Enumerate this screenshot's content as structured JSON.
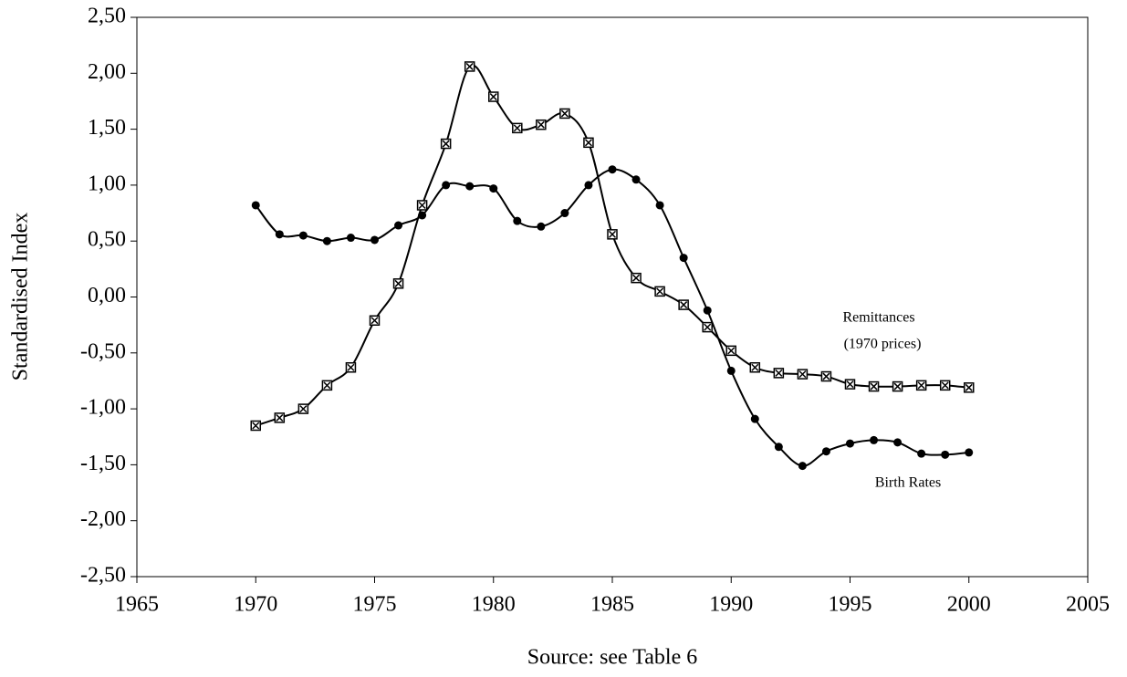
{
  "chart_data": {
    "type": "line",
    "y_label": "Standardised Index",
    "x_label": "Source: see Table 6",
    "x": [
      1970,
      1971,
      1972,
      1973,
      1974,
      1975,
      1976,
      1977,
      1978,
      1979,
      1980,
      1981,
      1982,
      1983,
      1984,
      1985,
      1986,
      1987,
      1988,
      1989,
      1990,
      1991,
      1992,
      1993,
      1994,
      1995,
      1996,
      1997,
      1998,
      1999,
      2000
    ],
    "series": [
      {
        "name": "Birth Rates",
        "color": "#000000",
        "marker": "circle",
        "values": [
          0.82,
          0.56,
          0.55,
          0.5,
          0.53,
          0.51,
          0.64,
          0.73,
          1.0,
          0.99,
          0.97,
          0.68,
          0.63,
          0.75,
          1.0,
          1.14,
          1.05,
          0.82,
          0.35,
          -0.12,
          -0.66,
          -1.09,
          -1.34,
          -1.51,
          -1.38,
          -1.31,
          -1.28,
          -1.3,
          -1.4,
          -1.41,
          -1.39
        ]
      },
      {
        "name": "Remittances",
        "color": "#000000",
        "marker": "square-x",
        "values": [
          -1.15,
          -1.08,
          -1.0,
          -0.79,
          -0.63,
          -0.21,
          0.12,
          0.82,
          1.37,
          2.06,
          1.79,
          1.51,
          1.54,
          1.64,
          1.38,
          0.56,
          0.17,
          0.05,
          -0.07,
          -0.27,
          -0.48,
          -0.63,
          -0.68,
          -0.69,
          -0.71,
          -0.78,
          -0.8,
          -0.8,
          -0.79,
          -0.79,
          -0.81
        ]
      }
    ],
    "annotations": [
      "(1970 prices)"
    ],
    "xlim": [
      1965,
      2005
    ],
    "xticks": [
      1965,
      1970,
      1975,
      1980,
      1985,
      1990,
      1995,
      2000,
      2005
    ],
    "ylim": [
      -2.5,
      2.5
    ],
    "yticks": [
      {
        "value": -2.5,
        "label": "-2,50"
      },
      {
        "value": -2.0,
        "label": "-2,00"
      },
      {
        "value": -1.5,
        "label": "-1,50"
      },
      {
        "value": -1.0,
        "label": "-1,00"
      },
      {
        "value": -0.5,
        "label": "-0,50"
      },
      {
        "value": 0,
        "label": "0,00"
      },
      {
        "value": 0.5,
        "label": "0,50"
      },
      {
        "value": 1.0,
        "label": "1,00"
      },
      {
        "value": 1.5,
        "label": "1,50"
      },
      {
        "value": 2.0,
        "label": "2,00"
      },
      {
        "value": 2.5,
        "label": "2,50"
      }
    ],
    "grid": false
  }
}
